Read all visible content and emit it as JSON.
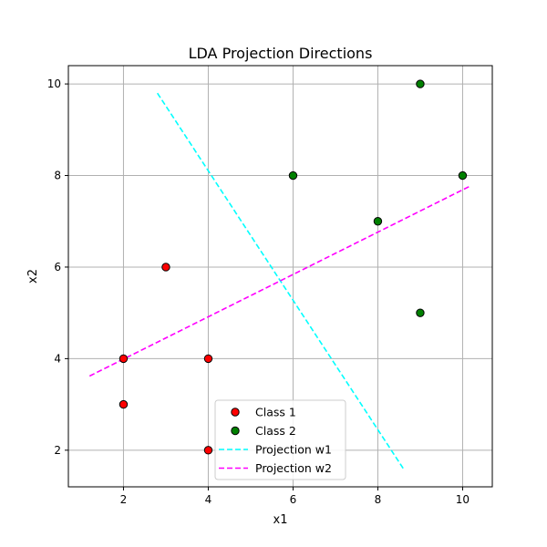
{
  "chart_data": {
    "type": "scatter",
    "title": "LDA Projection Directions",
    "xlabel": "x1",
    "ylabel": "x2",
    "xlim": [
      0.7,
      10.7
    ],
    "ylim": [
      1.2,
      10.4
    ],
    "xticks": [
      "2",
      "4",
      "6",
      "8",
      "10"
    ],
    "yticks": [
      "2",
      "4",
      "6",
      "8",
      "10"
    ],
    "grid": true,
    "legend_position": "bottom-center",
    "series": [
      {
        "name": "Class 1",
        "kind": "scatter",
        "color": "#ff0000",
        "points": [
          [
            2,
            4
          ],
          [
            2,
            3
          ],
          [
            3,
            6
          ],
          [
            4,
            4
          ],
          [
            4,
            2
          ]
        ]
      },
      {
        "name": "Class 2",
        "kind": "scatter",
        "color": "#008000",
        "points": [
          [
            9,
            10
          ],
          [
            6,
            8
          ],
          [
            10,
            8
          ],
          [
            8,
            7
          ],
          [
            9,
            5
          ]
        ]
      },
      {
        "name": "Projection w1",
        "kind": "line",
        "color": "#00ffff",
        "points": [
          [
            2.8,
            9.8
          ],
          [
            8.6,
            1.6
          ]
        ]
      },
      {
        "name": "Projection w2",
        "kind": "line",
        "color": "#ff00ff",
        "points": [
          [
            1.2,
            3.62
          ],
          [
            10.2,
            7.78
          ]
        ]
      }
    ]
  }
}
